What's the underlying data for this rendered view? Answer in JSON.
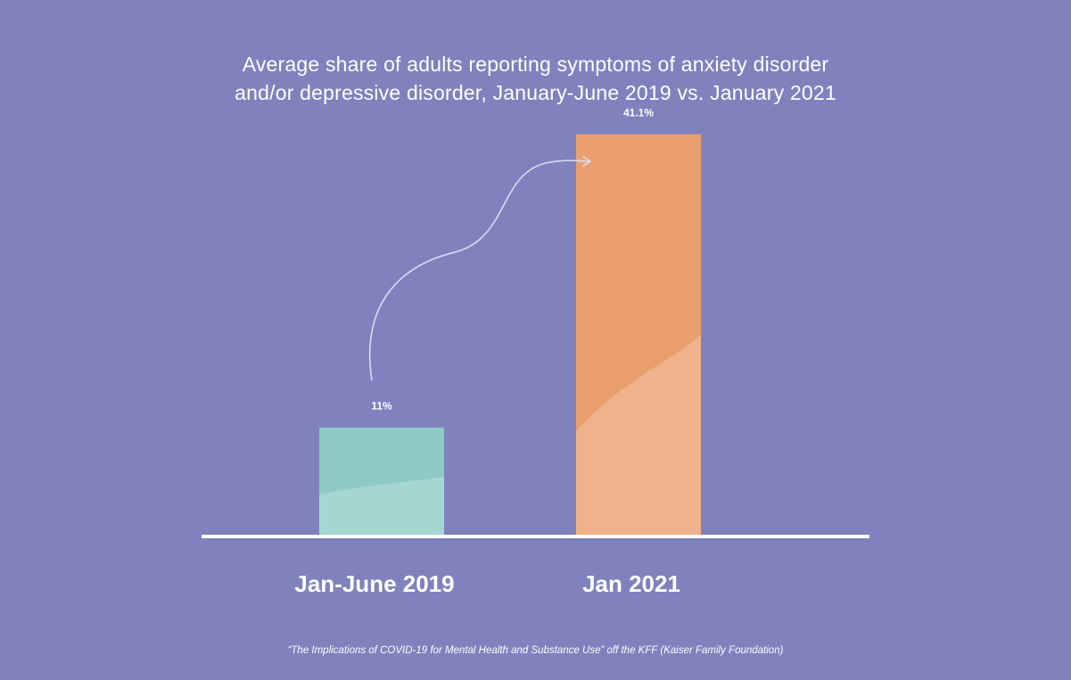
{
  "title_lines": [
    "Average share of adults reporting symptoms of anxiety disorder",
    "and/or depressive disorder, January-June 2019 vs. January 2021"
  ],
  "source": "“The Implications of COVID-19 for Mental Health and Substance Use” off the KFF (Kaiser Family Foundation)",
  "colors": {
    "background": "#7f82bd",
    "bar_2019_dark": "#8ec9c5",
    "bar_2019_light": "#a6d6d2",
    "bar_2021_dark": "#e99f6d",
    "bar_2021_light": "#efb28c",
    "axis": "#ffffff",
    "arrow": "#d9dbef"
  },
  "chart_data": {
    "type": "bar",
    "title": "Average share of adults reporting symptoms of anxiety disorder and/or depressive disorder, January-June 2019 vs. January 2021",
    "categories": [
      "Jan-June 2019",
      "Jan 2021"
    ],
    "values": [
      11,
      41.1
    ],
    "value_labels": [
      "11%",
      "41.1%"
    ],
    "unit": "%",
    "xlabel": "",
    "ylabel": "",
    "ylim": [
      0,
      45
    ],
    "grid": false,
    "legend": "none",
    "annotation": "curved arrow from the Jan-June 2019 bar up toward the Jan 2021 bar"
  }
}
